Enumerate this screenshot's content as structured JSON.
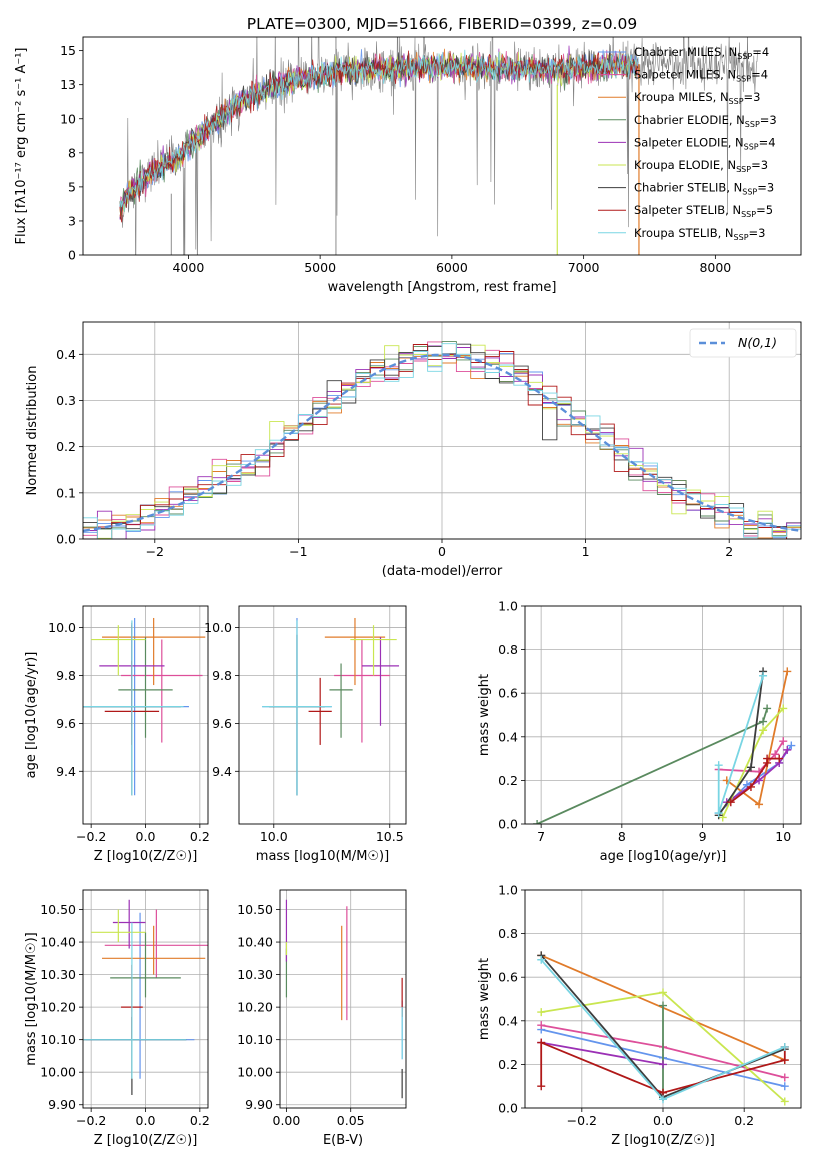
{
  "figure_title": "PLATE=0300, MJD=51666, FIBERID=0399, z=0.09",
  "colors": {
    "observed": "#808080",
    "normal": "#5b8fd9",
    "models": [
      "#6495ed",
      "#dd4f9a",
      "#e07b2a",
      "#5a8a5f",
      "#9b30b5",
      "#c9e650",
      "#3d3d3d",
      "#b01818",
      "#79d5e3"
    ]
  },
  "models": [
    {
      "name": "Chabrier MILES",
      "nssp": 4,
      "color_index": 0
    },
    {
      "name": "Salpeter MILES",
      "nssp": 4,
      "color_index": 1
    },
    {
      "name": "Kroupa MILES",
      "nssp": 3,
      "color_index": 2
    },
    {
      "name": "Chabrier ELODIE",
      "nssp": 3,
      "color_index": 3
    },
    {
      "name": "Salpeter ELODIE",
      "nssp": 4,
      "color_index": 4
    },
    {
      "name": "Kroupa ELODIE",
      "nssp": 3,
      "color_index": 5
    },
    {
      "name": "Chabrier STELIB",
      "nssp": 3,
      "color_index": 6
    },
    {
      "name": "Salpeter STELIB",
      "nssp": 5,
      "color_index": 7
    },
    {
      "name": "Kroupa STELIB",
      "nssp": 3,
      "color_index": 8
    }
  ],
  "legend_nssp_prefix": "N",
  "legend_nssp_sub": "SSP",
  "chart_data": [
    {
      "id": "spectrum",
      "type": "line",
      "xlabel": "wavelength [Angstrom, rest frame]",
      "ylabel": "Flux [fλ10⁻¹⁷ erg cm⁻² s⁻¹ A⁻¹]",
      "xlim": [
        3200,
        8650
      ],
      "ylim": [
        0,
        16
      ],
      "xticks": [
        4000,
        5000,
        6000,
        7000,
        8000
      ],
      "yticks": [
        0.0,
        2.5,
        5.0,
        7.5,
        10.0,
        12.5,
        15.0
      ],
      "grid": false,
      "legend": "top-right",
      "continuum": [
        [
          3480,
          3.5
        ],
        [
          3600,
          5.0
        ],
        [
          3750,
          6.2
        ],
        [
          3950,
          7.4
        ],
        [
          4000,
          8.0
        ],
        [
          4200,
          9.7
        ],
        [
          4400,
          11.3
        ],
        [
          4600,
          12.2
        ],
        [
          4800,
          12.8
        ],
        [
          5000,
          13.2
        ],
        [
          5200,
          13.5
        ],
        [
          5500,
          13.7
        ],
        [
          5800,
          13.8
        ],
        [
          6100,
          13.8
        ],
        [
          6400,
          13.7
        ],
        [
          6700,
          13.6
        ],
        [
          7000,
          13.7
        ],
        [
          7200,
          13.9
        ],
        [
          7400,
          13.9
        ]
      ],
      "observed_range": [
        3480,
        8320
      ],
      "model_range": [
        3480,
        7420
      ]
    },
    {
      "id": "residuals",
      "type": "step-histogram",
      "xlabel": "(data-model)/error",
      "ylabel": "Normed distribution",
      "xlim": [
        -2.5,
        2.5
      ],
      "ylim": [
        0,
        0.47
      ],
      "xticks": [
        -2,
        -1,
        0,
        1,
        2
      ],
      "yticks": [
        0.0,
        0.1,
        0.2,
        0.3,
        0.4
      ],
      "grid": true,
      "legend": "top-right",
      "bin_width": 0.1,
      "normal_label": "N(0,1)"
    },
    {
      "id": "age-vs-Z",
      "type": "errorbar",
      "xlabel": "Z [log10(Z/Z☉)]",
      "ylabel": "age  [log10(age/yr)]",
      "xlim": [
        -0.23,
        0.23
      ],
      "ylim": [
        9.18,
        10.09
      ],
      "xticks": [
        -0.2,
        0.0,
        0.2
      ],
      "yticks": [
        9.4,
        9.6,
        9.8,
        10.0
      ],
      "grid": true,
      "points": [
        {
          "x": -0.04,
          "y": 9.67,
          "xerr": 0.2,
          "yerr_lo": 0.37,
          "yerr_hi": 0.37
        },
        {
          "x": 0.06,
          "y": 9.8,
          "xerr": 0.15,
          "yerr_lo": 0.28,
          "yerr_hi": 0.15
        },
        {
          "x": 0.03,
          "y": 9.96,
          "xerr": 0.19,
          "yerr_lo": 0.2,
          "yerr_hi": 0.08
        },
        {
          "x": 0.0,
          "y": 9.74,
          "xerr": 0.1,
          "yerr_lo": 0.2,
          "yerr_hi": 0.22
        },
        {
          "x": -0.05,
          "y": 9.84,
          "xerr": 0.12,
          "yerr_lo": 0.25,
          "yerr_hi": 0.17
        },
        {
          "x": -0.1,
          "y": 9.95,
          "xerr": 0.1,
          "yerr_lo": 0.15,
          "yerr_hi": 0.06
        },
        {
          "x": -0.05,
          "y": 9.67,
          "xerr": 0.18,
          "yerr_lo": 0.37,
          "yerr_hi": 0.35
        },
        {
          "x": -0.05,
          "y": 9.65,
          "xerr": 0.1,
          "yerr_lo": 0.14,
          "yerr_hi": 0.21
        },
        {
          "x": -0.05,
          "y": 9.67,
          "xerr": 0.19,
          "yerr_lo": 0.37,
          "yerr_hi": 0.36
        }
      ]
    },
    {
      "id": "age-vs-mass",
      "type": "errorbar",
      "xlabel": "mass [log10(M/M☉)]",
      "ylabel": "",
      "xlim": [
        9.85,
        10.57
      ],
      "ylim": [
        9.18,
        10.09
      ],
      "xticks": [
        10.0,
        10.5
      ],
      "yticks": [
        9.4,
        9.6,
        9.8,
        10.0
      ],
      "grid": true,
      "points": [
        {
          "x": 10.1,
          "y": 9.67,
          "xerr": 0.15,
          "yerr_lo": 0.37,
          "yerr_hi": 0.37
        },
        {
          "x": 10.38,
          "y": 9.8,
          "xerr": 0.12,
          "yerr_lo": 0.28,
          "yerr_hi": 0.15
        },
        {
          "x": 10.35,
          "y": 9.96,
          "xerr": 0.13,
          "yerr_lo": 0.2,
          "yerr_hi": 0.08
        },
        {
          "x": 10.29,
          "y": 9.74,
          "xerr": 0.05,
          "yerr_lo": 0.2,
          "yerr_hi": 0.11
        },
        {
          "x": 10.46,
          "y": 9.84,
          "xerr": 0.08,
          "yerr_lo": 0.25,
          "yerr_hi": 0.12
        },
        {
          "x": 10.43,
          "y": 9.95,
          "xerr": 0.1,
          "yerr_lo": 0.15,
          "yerr_hi": 0.06
        },
        {
          "x": 10.1,
          "y": 9.67,
          "xerr": 0.12,
          "yerr_lo": 0.37,
          "yerr_hi": 0.3
        },
        {
          "x": 10.2,
          "y": 9.65,
          "xerr": 0.05,
          "yerr_lo": 0.14,
          "yerr_hi": 0.14
        },
        {
          "x": 10.1,
          "y": 9.67,
          "xerr": 0.15,
          "yerr_lo": 0.37,
          "yerr_hi": 0.36
        }
      ]
    },
    {
      "id": "mass-weight-vs-age",
      "type": "line",
      "xlabel": "age  [log10(age/yr)]",
      "ylabel": "mass weight",
      "xlim": [
        6.8,
        10.22
      ],
      "ylim": [
        0,
        1
      ],
      "xticks": [
        7,
        8,
        9,
        10
      ],
      "yticks": [
        0.0,
        0.2,
        0.4,
        0.6,
        0.8,
        1.0
      ],
      "grid": true,
      "series": [
        {
          "x": [
            9.2,
            9.55,
            9.95,
            10.1
          ],
          "y": [
            0.05,
            0.18,
            0.28,
            0.36
          ]
        },
        {
          "x": [
            9.2,
            9.7,
            9.9,
            10.0
          ],
          "y": [
            0.25,
            0.24,
            0.32,
            0.38
          ]
        },
        {
          "x": [
            9.3,
            9.7,
            10.05
          ],
          "y": [
            0.2,
            0.09,
            0.7
          ]
        },
        {
          "x": [
            6.95,
            9.75,
            9.8
          ],
          "y": [
            0.0,
            0.47,
            0.53
          ]
        },
        {
          "x": [
            9.3,
            9.7,
            9.95,
            10.05
          ],
          "y": [
            0.1,
            0.2,
            0.28,
            0.34
          ]
        },
        {
          "x": [
            9.25,
            9.75,
            10.0
          ],
          "y": [
            0.03,
            0.43,
            0.53
          ]
        },
        {
          "x": [
            9.2,
            9.6,
            9.75
          ],
          "y": [
            0.04,
            0.26,
            0.7
          ]
        },
        {
          "x": [
            9.35,
            9.6,
            9.8,
            9.8,
            9.95
          ],
          "y": [
            0.1,
            0.17,
            0.28,
            0.3,
            0.3
          ]
        },
        {
          "x": [
            9.2,
            9.2,
            9.75
          ],
          "y": [
            0.27,
            0.05,
            0.68
          ]
        }
      ]
    },
    {
      "id": "mass-vs-Z",
      "type": "errorbar",
      "xlabel": "Z [log10(Z/Z☉)]",
      "ylabel": "mass [log10(M/M☉)]",
      "xlim": [
        -0.23,
        0.23
      ],
      "ylim": [
        9.89,
        10.56
      ],
      "xticks": [
        -0.2,
        0.0,
        0.2
      ],
      "yticks": [
        9.9,
        10.0,
        10.1,
        10.2,
        10.3,
        10.4,
        10.5
      ],
      "grid": true,
      "points": [
        {
          "x": -0.02,
          "y": 10.1,
          "xerr": 0.2,
          "yerr_lo": 0.12,
          "yerr_hi": 0.39
        },
        {
          "x": 0.04,
          "y": 10.39,
          "xerr": 0.19,
          "yerr_lo": 0.1,
          "yerr_hi": 0.11
        },
        {
          "x": 0.03,
          "y": 10.35,
          "xerr": 0.19,
          "yerr_lo": 0.05,
          "yerr_hi": 0.1
        },
        {
          "x": 0.0,
          "y": 10.29,
          "xerr": 0.13,
          "yerr_lo": 0.06,
          "yerr_hi": 0.14
        },
        {
          "x": -0.06,
          "y": 10.46,
          "xerr": 0.06,
          "yerr_lo": 0.08,
          "yerr_hi": 0.07
        },
        {
          "x": -0.1,
          "y": 10.43,
          "xerr": 0.1,
          "yerr_lo": 0.03,
          "yerr_hi": 0.07
        },
        {
          "x": -0.05,
          "y": 10.1,
          "xerr": 0.2,
          "yerr_lo": 0.17,
          "yerr_hi": 0.07
        },
        {
          "x": -0.05,
          "y": 10.2,
          "xerr": 0.04,
          "yerr_lo": 0.1,
          "yerr_hi": 0.13
        },
        {
          "x": -0.05,
          "y": 10.1,
          "xerr": 0.2,
          "yerr_lo": 0.12,
          "yerr_hi": 0.36
        }
      ]
    },
    {
      "id": "mass-vs-EBV",
      "type": "errorbar",
      "xlabel": "E(B-V)",
      "ylabel": "",
      "xlim": [
        -0.005,
        0.093
      ],
      "ylim": [
        9.89,
        10.56
      ],
      "xticks": [
        0.0,
        0.05
      ],
      "yticks": [
        9.9,
        10.0,
        10.1,
        10.2,
        10.3,
        10.4,
        10.5
      ],
      "grid": true,
      "points": [
        {
          "x": 0.09,
          "y": 10.1,
          "xerr": 0.0,
          "yerr_lo": 0.06,
          "yerr_hi": 0.12
        },
        {
          "x": 0.047,
          "y": 10.34,
          "xerr": 0.0,
          "yerr_lo": 0.18,
          "yerr_hi": 0.17
        },
        {
          "x": 0.043,
          "y": 10.31,
          "xerr": 0.0,
          "yerr_lo": 0.15,
          "yerr_hi": 0.14
        },
        {
          "x": 0.0,
          "y": 10.32,
          "xerr": 0.0,
          "yerr_lo": 0.09,
          "yerr_hi": 0.06
        },
        {
          "x": 0.0,
          "y": 10.44,
          "xerr": 0.0,
          "yerr_lo": 0.1,
          "yerr_hi": 0.09
        },
        {
          "x": 0.0,
          "y": 10.38,
          "xerr": 0.0,
          "yerr_lo": 0.02,
          "yerr_hi": 0.02
        },
        {
          "x": 0.09,
          "y": 9.98,
          "xerr": 0.0,
          "yerr_lo": 0.06,
          "yerr_hi": 0.03
        },
        {
          "x": 0.09,
          "y": 10.2,
          "xerr": 0.0,
          "yerr_lo": 0.03,
          "yerr_hi": 0.09
        },
        {
          "x": 0.09,
          "y": 10.1,
          "xerr": 0.0,
          "yerr_lo": 0.06,
          "yerr_hi": 0.1
        }
      ]
    },
    {
      "id": "mass-weight-vs-Z",
      "type": "line",
      "xlabel": "Z [log10(Z/Z☉)]",
      "ylabel": "mass weight",
      "xlim": [
        -0.34,
        0.34
      ],
      "ylim": [
        0,
        1
      ],
      "xticks": [
        -0.2,
        0.0,
        0.2
      ],
      "yticks": [
        0.0,
        0.2,
        0.4,
        0.6,
        0.8,
        1.0
      ],
      "grid": true,
      "series": [
        {
          "x": [
            -0.3,
            0.0,
            0.3
          ],
          "y": [
            0.36,
            0.23,
            0.1
          ]
        },
        {
          "x": [
            -0.3,
            0.0,
            0.3
          ],
          "y": [
            0.38,
            0.28,
            0.14
          ]
        },
        {
          "x": [
            -0.3,
            0.3
          ],
          "y": [
            0.7,
            0.22
          ]
        },
        {
          "x": [
            0.0,
            0.0
          ],
          "y": [
            0.47,
            0.05
          ]
        },
        {
          "x": [
            -0.3,
            0.0
          ],
          "y": [
            0.3,
            0.2
          ]
        },
        {
          "x": [
            -0.3,
            0.0,
            0.3
          ],
          "y": [
            0.44,
            0.53,
            0.03
          ]
        },
        {
          "x": [
            -0.3,
            0.0,
            0.3
          ],
          "y": [
            0.7,
            0.05,
            0.27
          ]
        },
        {
          "x": [
            -0.3,
            -0.3,
            0.0,
            0.3,
            0.3
          ],
          "y": [
            0.1,
            0.3,
            0.07,
            0.22,
            0.28
          ]
        },
        {
          "x": [
            -0.3,
            0.0,
            0.3
          ],
          "y": [
            0.68,
            0.04,
            0.28
          ]
        }
      ]
    }
  ]
}
